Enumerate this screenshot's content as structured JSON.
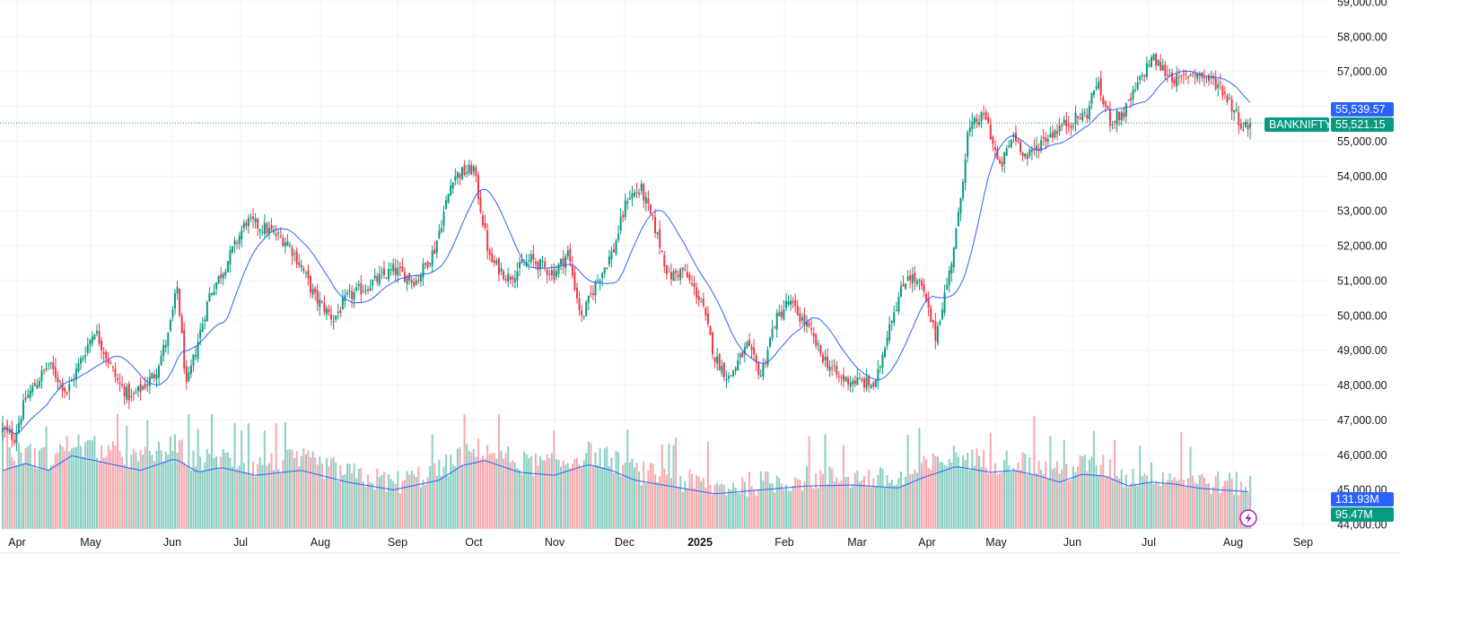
{
  "chart_data": {
    "type": "candlestick",
    "symbol": "BANKNIFTY",
    "last_price_label": "55,521.15",
    "ma_price_label": "55,539.57",
    "volume_label": "95.47M",
    "volume_ma_label": "131.93M",
    "y_axis": {
      "min": 44000,
      "max": 59000,
      "ticks": [
        44000,
        45000,
        46000,
        47000,
        48000,
        49000,
        50000,
        51000,
        52000,
        53000,
        54000,
        55000,
        56000,
        57000,
        58000,
        59000
      ],
      "tick_labels": [
        "44,000.00",
        "45,000.00",
        "46,000.00",
        "47,000.00",
        "48,000.00",
        "49,000.00",
        "50,000.00",
        "51,000.00",
        "52,000.00",
        "53,000.00",
        "54,000.00",
        "55,000.00",
        "56,000.00",
        "57,000.00",
        "58,000.00",
        "59,000.00"
      ]
    },
    "x_axis": {
      "labels": [
        "Apr",
        "May",
        "Jun",
        "Jul",
        "Aug",
        "Sep",
        "Oct",
        "Nov",
        "Dec",
        "2025",
        "Feb",
        "Mar",
        "Apr",
        "May",
        "Jun",
        "Jul",
        "Aug",
        "Sep"
      ],
      "bold": [
        false,
        false,
        false,
        false,
        false,
        false,
        false,
        false,
        false,
        true,
        false,
        false,
        false,
        false,
        false,
        false,
        false,
        false
      ]
    },
    "series": [
      {
        "name": "price_anchors",
        "points": [
          [
            0,
            46700
          ],
          [
            5,
            46500
          ],
          [
            10,
            47600
          ],
          [
            20,
            48600
          ],
          [
            28,
            47800
          ],
          [
            40,
            49600
          ],
          [
            50,
            48100
          ],
          [
            56,
            47600
          ],
          [
            66,
            48300
          ],
          [
            72,
            49400
          ],
          [
            76,
            50800
          ],
          [
            80,
            47900
          ],
          [
            84,
            49000
          ],
          [
            90,
            50600
          ],
          [
            96,
            51300
          ],
          [
            106,
            52700
          ],
          [
            114,
            52500
          ],
          [
            124,
            52100
          ],
          [
            130,
            51400
          ],
          [
            136,
            50500
          ],
          [
            144,
            49900
          ],
          [
            150,
            50500
          ],
          [
            160,
            50900
          ],
          [
            170,
            51300
          ],
          [
            180,
            51000
          ],
          [
            188,
            51900
          ],
          [
            196,
            54000
          ],
          [
            205,
            54200
          ],
          [
            212,
            51600
          ],
          [
            220,
            51100
          ],
          [
            230,
            51600
          ],
          [
            240,
            51200
          ],
          [
            246,
            51800
          ],
          [
            252,
            49900
          ],
          [
            258,
            50900
          ],
          [
            266,
            51900
          ],
          [
            272,
            53400
          ],
          [
            278,
            53600
          ],
          [
            284,
            52500
          ],
          [
            290,
            51100
          ],
          [
            296,
            51300
          ],
          [
            304,
            50400
          ],
          [
            310,
            48800
          ],
          [
            316,
            48200
          ],
          [
            324,
            49100
          ],
          [
            330,
            48300
          ],
          [
            336,
            49800
          ],
          [
            342,
            50400
          ],
          [
            350,
            49700
          ],
          [
            356,
            48900
          ],
          [
            364,
            48200
          ],
          [
            372,
            48100
          ],
          [
            380,
            48000
          ],
          [
            386,
            49800
          ],
          [
            394,
            51200
          ],
          [
            400,
            50800
          ],
          [
            406,
            49400
          ],
          [
            412,
            51200
          ],
          [
            416,
            52800
          ],
          [
            420,
            55200
          ],
          [
            424,
            55600
          ],
          [
            428,
            55700
          ],
          [
            434,
            54200
          ],
          [
            440,
            55200
          ],
          [
            446,
            54500
          ],
          [
            452,
            55000
          ],
          [
            460,
            55400
          ],
          [
            466,
            55600
          ],
          [
            472,
            55800
          ],
          [
            476,
            56700
          ],
          [
            482,
            55600
          ],
          [
            488,
            55800
          ],
          [
            494,
            56600
          ],
          [
            500,
            57400
          ],
          [
            506,
            57000
          ],
          [
            512,
            56700
          ],
          [
            518,
            57000
          ],
          [
            524,
            56800
          ],
          [
            530,
            56600
          ],
          [
            536,
            55900
          ],
          [
            540,
            55400
          ],
          [
            543,
            55450
          ]
        ]
      },
      {
        "name": "volume_anchors",
        "points": [
          [
            0,
            60
          ],
          [
            10,
            67
          ],
          [
            20,
            60
          ],
          [
            30,
            75
          ],
          [
            40,
            70
          ],
          [
            60,
            60
          ],
          [
            75,
            72
          ],
          [
            85,
            58
          ],
          [
            95,
            63
          ],
          [
            110,
            55
          ],
          [
            130,
            60
          ],
          [
            150,
            48
          ],
          [
            170,
            40
          ],
          [
            180,
            45
          ],
          [
            190,
            50
          ],
          [
            200,
            65
          ],
          [
            210,
            70
          ],
          [
            225,
            58
          ],
          [
            240,
            55
          ],
          [
            255,
            66
          ],
          [
            265,
            60
          ],
          [
            275,
            50
          ],
          [
            290,
            44
          ],
          [
            310,
            36
          ],
          [
            330,
            40
          ],
          [
            350,
            44
          ],
          [
            370,
            45
          ],
          [
            390,
            42
          ],
          [
            400,
            52
          ],
          [
            415,
            64
          ],
          [
            430,
            58
          ],
          [
            440,
            60
          ],
          [
            450,
            55
          ],
          [
            460,
            48
          ],
          [
            470,
            56
          ],
          [
            480,
            54
          ],
          [
            490,
            44
          ],
          [
            500,
            48
          ],
          [
            510,
            46
          ],
          [
            520,
            42
          ],
          [
            530,
            40
          ],
          [
            543,
            38
          ]
        ]
      }
    ],
    "colors": {
      "up": "#089981",
      "down": "#f23645",
      "volume_up": "#8ccfc3",
      "volume_down": "#f7a9ae",
      "ma": "#2962ff",
      "price_tag": "#089981",
      "ma_tag": "#2962ff",
      "grid": "#f0f3fa",
      "bolt": "#9c27b0"
    },
    "grid": true,
    "volume_ma_level": 0.52
  }
}
